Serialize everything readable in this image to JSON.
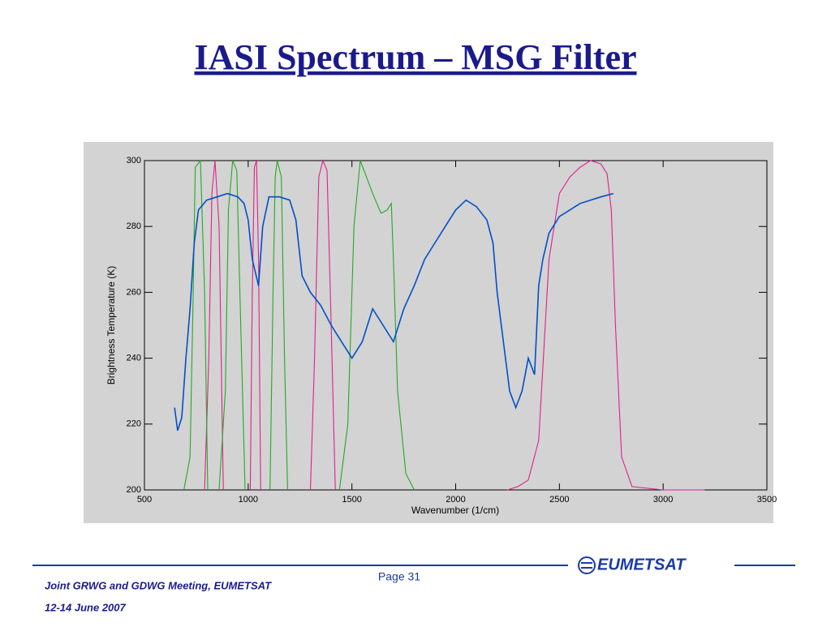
{
  "slide": {
    "title": "IASI Spectrum – MSG Filter",
    "page": "Page 31",
    "footer_meeting": "Joint GRWG and GDWG Meeting, EUMETSAT",
    "footer_date": "12-14 June 2007",
    "logo": "EUMETSAT"
  },
  "chart_data": {
    "type": "line",
    "xlabel": "Wavenumber (1/cm)",
    "ylabel": "Brightness Temperature (K)",
    "xlim": [
      500,
      3500
    ],
    "ylim": [
      200,
      300
    ],
    "xticks": [
      500,
      1000,
      1500,
      2000,
      2500,
      3000,
      3500
    ],
    "yticks": [
      200,
      220,
      240,
      260,
      280,
      300
    ],
    "series": [
      {
        "color": "#0050c8",
        "x": [
          645,
          660,
          680,
          700,
          720,
          740,
          760,
          800,
          850,
          900,
          950,
          980,
          1000,
          1020,
          1050,
          1070,
          1100,
          1150,
          1200,
          1230,
          1260,
          1300,
          1350,
          1400,
          1450,
          1500,
          1550,
          1600,
          1650,
          1700,
          1750,
          1800,
          1850,
          1900,
          1950,
          2000,
          2050,
          2100,
          2150,
          2180,
          2200,
          2230,
          2260,
          2290,
          2320,
          2350,
          2380,
          2400,
          2420,
          2450,
          2500,
          2550,
          2600,
          2650,
          2700,
          2760
        ],
        "values": [
          225,
          218,
          222,
          240,
          255,
          275,
          285,
          288,
          289,
          290,
          289,
          287,
          282,
          270,
          262,
          280,
          289,
          289,
          288,
          282,
          265,
          260,
          256,
          250,
          245,
          240,
          245,
          255,
          250,
          245,
          255,
          262,
          270,
          275,
          280,
          285,
          288,
          286,
          282,
          275,
          260,
          245,
          230,
          225,
          230,
          240,
          235,
          262,
          270,
          278,
          283,
          285,
          287,
          288,
          289,
          290
        ]
      },
      {
        "color": "#22aa22",
        "x": [
          690,
          720,
          735,
          745,
          770,
          790,
          805
        ],
        "values": [
          200,
          210,
          260,
          298,
          300,
          260,
          200
        ]
      },
      {
        "color": "#22aa22",
        "x": [
          860,
          890,
          905,
          925,
          945,
          960,
          985
        ],
        "values": [
          200,
          230,
          285,
          300,
          297,
          260,
          200
        ]
      },
      {
        "color": "#22aa22",
        "x": [
          1105,
          1120,
          1130,
          1140,
          1160,
          1175,
          1190
        ],
        "values": [
          200,
          260,
          295,
          300,
          295,
          240,
          200
        ]
      },
      {
        "color": "#22aa22",
        "x": [
          1440,
          1480,
          1510,
          1540,
          1570,
          1600,
          1640,
          1670,
          1690,
          1700,
          1720,
          1760,
          1800
        ],
        "values": [
          200,
          220,
          280,
          300,
          295,
          290,
          284,
          285,
          287,
          270,
          230,
          205,
          200
        ]
      },
      {
        "color": "#e0208a",
        "x": [
          790,
          810,
          825,
          840,
          860,
          880
        ],
        "values": [
          200,
          240,
          290,
          300,
          280,
          200
        ]
      },
      {
        "color": "#e0208a",
        "x": [
          1010,
          1020,
          1030,
          1040,
          1050,
          1060
        ],
        "values": [
          200,
          260,
          298,
          300,
          270,
          200
        ]
      },
      {
        "color": "#e0208a",
        "x": [
          1300,
          1320,
          1340,
          1360,
          1380,
          1400,
          1420
        ],
        "values": [
          200,
          240,
          295,
          300,
          297,
          250,
          200
        ]
      },
      {
        "color": "#e0208a",
        "x": [
          2250,
          2300,
          2350,
          2400,
          2450,
          2500,
          2550,
          2600,
          2650,
          2700,
          2730,
          2750,
          2770,
          2800,
          2850,
          3000,
          3200
        ],
        "values": [
          200,
          201,
          203,
          215,
          270,
          290,
          295,
          298,
          300,
          299,
          296,
          285,
          250,
          210,
          201,
          200,
          200
        ]
      }
    ]
  }
}
